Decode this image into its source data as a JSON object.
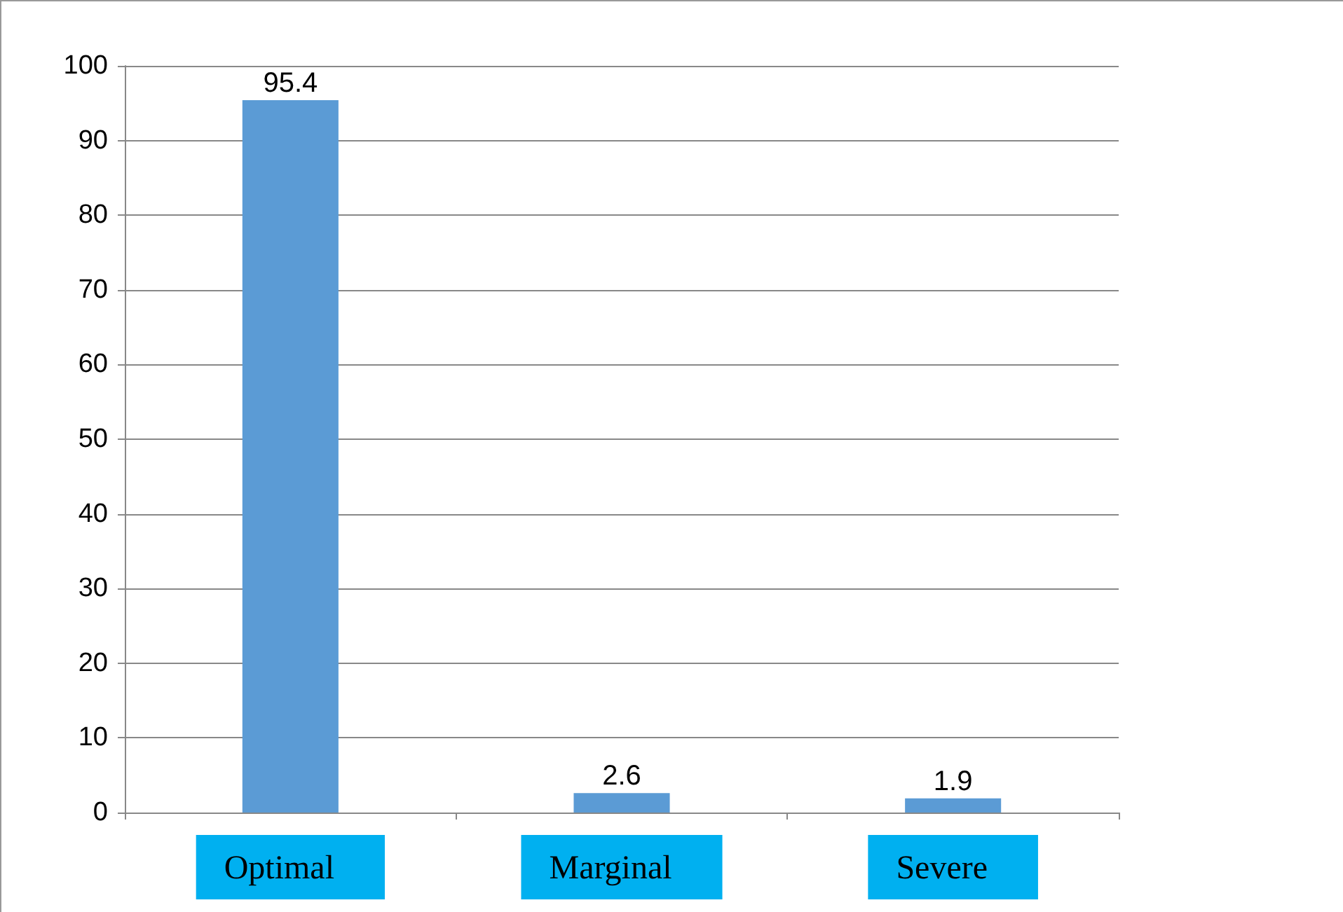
{
  "chart_data": {
    "type": "bar",
    "categories": [
      "Optimal",
      "Marginal",
      "Severe"
    ],
    "values": [
      95.4,
      2.6,
      1.9
    ],
    "color": "#5b9bd5",
    "ylim": [
      0,
      100
    ],
    "yticks": [
      0,
      10,
      20,
      30,
      40,
      50,
      60,
      70,
      80,
      90,
      100
    ],
    "grid": "y",
    "data_labels": true
  }
}
